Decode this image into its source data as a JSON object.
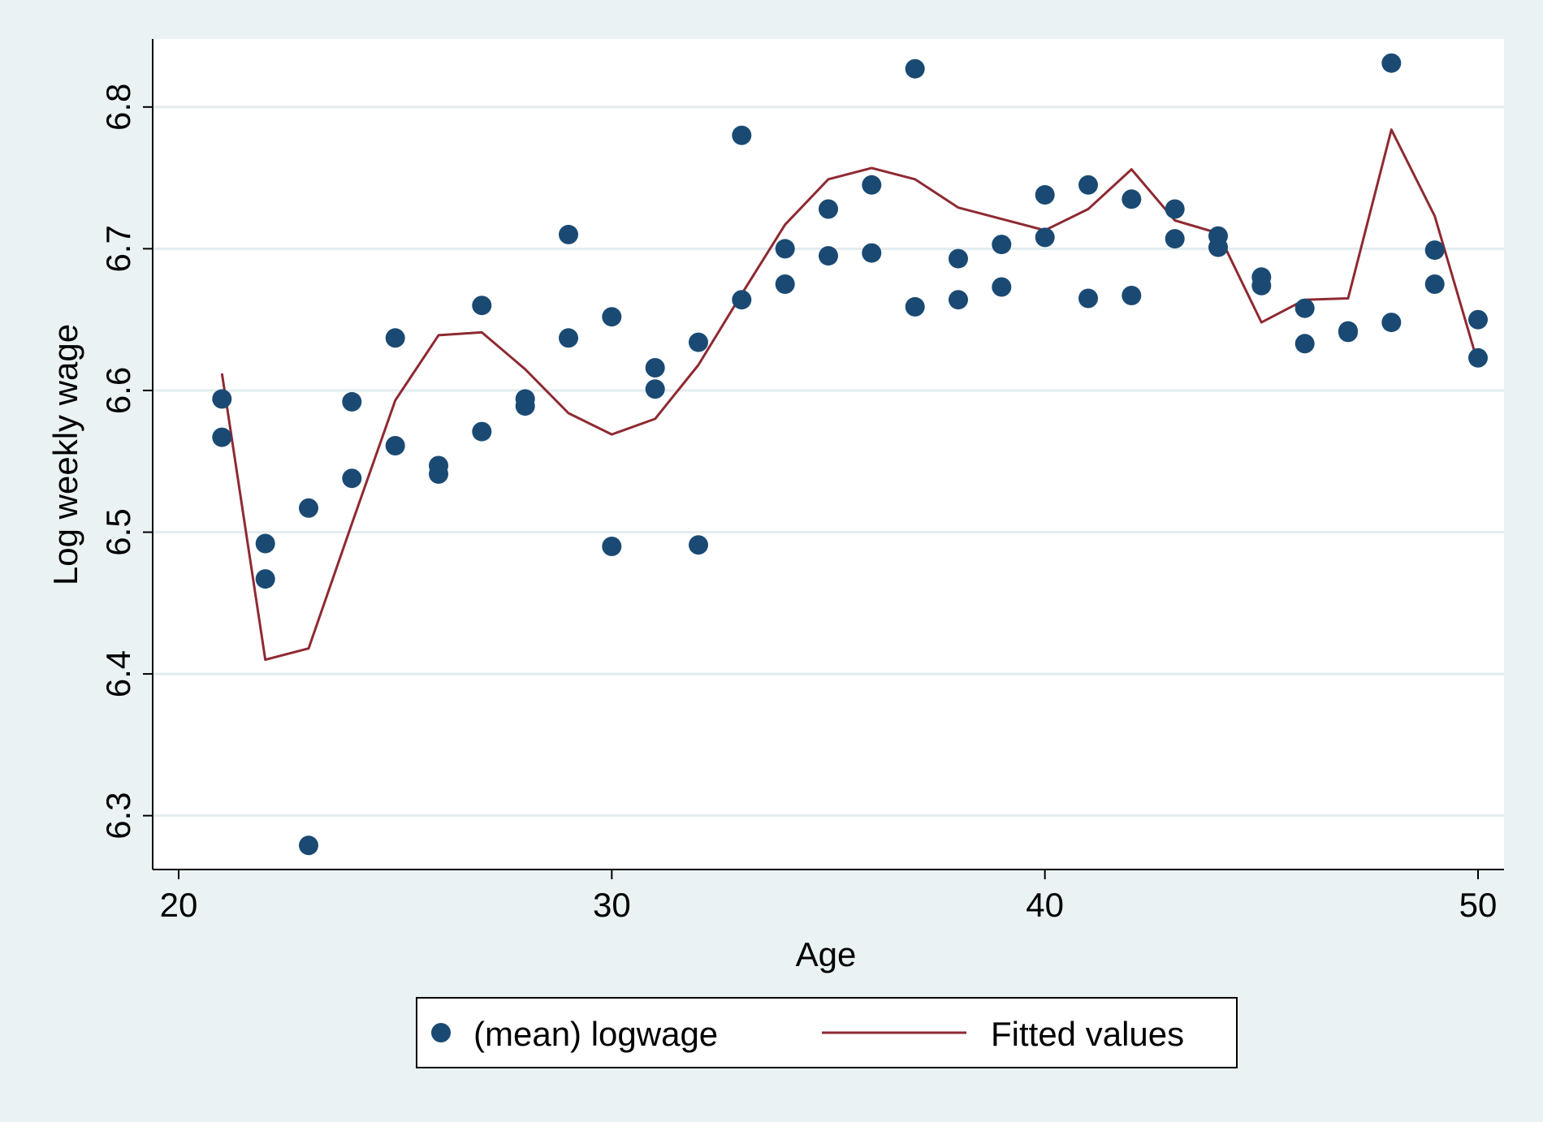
{
  "colors": {
    "background": "#eaf2f3",
    "plot_area": "#ffffff",
    "gridline": "#e3ecee",
    "marker": "#1a4a73",
    "fitted_line": "#8e2a32"
  },
  "chart_data": {
    "type": "scatter",
    "xlabel": "Age",
    "ylabel": "Log weekly wage",
    "xlim": [
      19.4,
      50.6
    ],
    "ylim": [
      6.262,
      6.848
    ],
    "x_ticks": [
      20,
      30,
      40,
      50
    ],
    "x_tick_labels": [
      "20",
      "30",
      "40",
      "50"
    ],
    "y_ticks": [
      6.3,
      6.4,
      6.5,
      6.6,
      6.7,
      6.8
    ],
    "y_tick_labels": [
      "6.3",
      "6.4",
      "6.5",
      "6.6",
      "6.7",
      "6.8"
    ],
    "grid": "horizontal",
    "legend_position": "bottom",
    "series": [
      {
        "name": "(mean) logwage",
        "kind": "scatter",
        "points": [
          [
            21,
            6.594
          ],
          [
            21,
            6.567
          ],
          [
            22,
            6.492
          ],
          [
            22,
            6.467
          ],
          [
            23,
            6.517
          ],
          [
            23,
            6.279
          ],
          [
            24,
            6.592
          ],
          [
            24,
            6.538
          ],
          [
            25,
            6.637
          ],
          [
            25,
            6.561
          ],
          [
            26,
            6.547
          ],
          [
            26,
            6.541
          ],
          [
            27,
            6.66
          ],
          [
            27,
            6.571
          ],
          [
            28,
            6.594
          ],
          [
            28,
            6.589
          ],
          [
            29,
            6.71
          ],
          [
            29,
            6.637
          ],
          [
            30,
            6.652
          ],
          [
            30,
            6.49
          ],
          [
            31,
            6.616
          ],
          [
            31,
            6.601
          ],
          [
            32,
            6.634
          ],
          [
            32,
            6.491
          ],
          [
            33,
            6.78
          ],
          [
            33,
            6.664
          ],
          [
            34,
            6.7
          ],
          [
            34,
            6.675
          ],
          [
            35,
            6.728
          ],
          [
            35,
            6.695
          ],
          [
            36,
            6.745
          ],
          [
            36,
            6.697
          ],
          [
            37,
            6.827
          ],
          [
            37,
            6.659
          ],
          [
            38,
            6.693
          ],
          [
            38,
            6.664
          ],
          [
            39,
            6.703
          ],
          [
            39,
            6.673
          ],
          [
            40,
            6.738
          ],
          [
            40,
            6.708
          ],
          [
            41,
            6.745
          ],
          [
            41,
            6.665
          ],
          [
            42,
            6.735
          ],
          [
            42,
            6.667
          ],
          [
            43,
            6.728
          ],
          [
            43,
            6.707
          ],
          [
            44,
            6.709
          ],
          [
            44,
            6.701
          ],
          [
            45,
            6.68
          ],
          [
            45,
            6.674
          ],
          [
            46,
            6.658
          ],
          [
            46,
            6.633
          ],
          [
            47,
            6.642
          ],
          [
            47,
            6.641
          ],
          [
            48,
            6.831
          ],
          [
            48,
            6.648
          ],
          [
            49,
            6.699
          ],
          [
            49,
            6.675
          ],
          [
            50,
            6.65
          ],
          [
            50,
            6.623
          ]
        ]
      },
      {
        "name": "Fitted values",
        "kind": "line",
        "x": [
          21,
          22,
          23,
          24,
          25,
          26,
          27,
          28,
          29,
          30,
          31,
          32,
          33,
          34,
          35,
          36,
          37,
          38,
          39,
          40,
          41,
          42,
          43,
          44,
          45,
          46,
          47,
          48,
          49,
          50
        ],
        "y": [
          6.612,
          6.41,
          6.418,
          6.506,
          6.593,
          6.639,
          6.641,
          6.615,
          6.584,
          6.569,
          6.58,
          6.618,
          6.668,
          6.717,
          6.749,
          6.757,
          6.749,
          6.729,
          6.721,
          6.713,
          6.728,
          6.756,
          6.72,
          6.711,
          6.648,
          6.664,
          6.665,
          6.784,
          6.723,
          6.619
        ]
      }
    ]
  }
}
